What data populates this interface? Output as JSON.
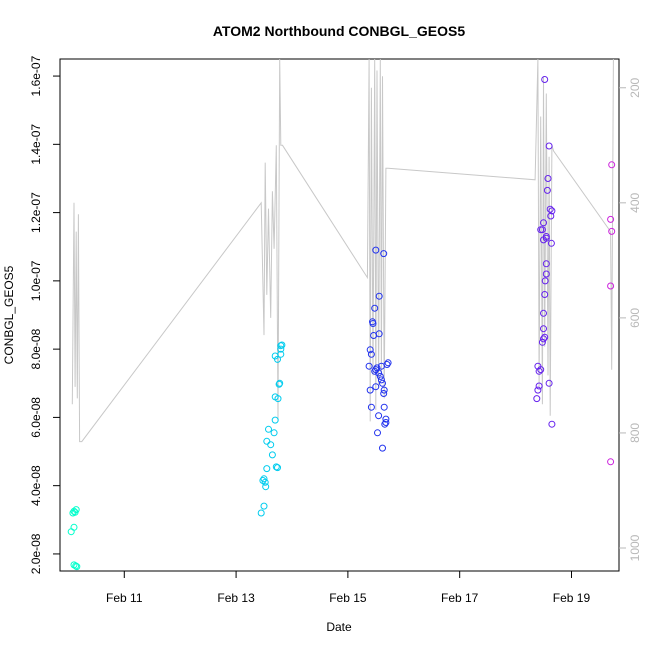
{
  "chart_data": {
    "type": "scatter",
    "title": "ATOM2 Northbound CONBGL_GEOS5",
    "xlabel": "Date",
    "ylabel": "CONBGL_GEOS5",
    "xlim": [
      9.85,
      19.85
    ],
    "ylim": [
      1.5e-08,
      1.65e-07
    ],
    "x_ticks": [
      {
        "value": 11,
        "label": "Feb 11"
      },
      {
        "value": 13,
        "label": "Feb 13"
      },
      {
        "value": 15,
        "label": "Feb 15"
      },
      {
        "value": 17,
        "label": "Feb 17"
      },
      {
        "value": 19,
        "label": "Feb 19"
      }
    ],
    "y_ticks": [
      {
        "value": 2e-08,
        "label": "2.0e-08"
      },
      {
        "value": 4e-08,
        "label": "4.0e-08"
      },
      {
        "value": 6e-08,
        "label": "6.0e-08"
      },
      {
        "value": 8e-08,
        "label": "8.0e-08"
      },
      {
        "value": 1e-07,
        "label": "1.0e-07"
      },
      {
        "value": 1.2e-07,
        "label": "1.2e-07"
      },
      {
        "value": 1.4e-07,
        "label": "1.4e-07"
      },
      {
        "value": 1.6e-07,
        "label": "1.6e-07"
      }
    ],
    "right_axis": {
      "ylim": [
        1040,
        150
      ],
      "ticks": [
        {
          "value": 200,
          "label": "200"
        },
        {
          "value": 400,
          "label": "400"
        },
        {
          "value": 600,
          "label": "600"
        },
        {
          "value": 800,
          "label": "800"
        },
        {
          "value": 1000,
          "label": "1000"
        }
      ],
      "color": "#b8b8b8"
    },
    "pressure_line": {
      "color": "#c8c8c8",
      "x": [
        10.07,
        10.1,
        10.12,
        10.14,
        10.16,
        10.18,
        10.2,
        10.24,
        13.45,
        13.5,
        13.52,
        13.55,
        13.58,
        13.62,
        13.65,
        13.68,
        13.72,
        13.75,
        13.78,
        13.8,
        13.83,
        15.35,
        15.38,
        15.4,
        15.42,
        15.45,
        15.48,
        15.5,
        15.52,
        15.55,
        15.58,
        15.6,
        15.62,
        15.65,
        15.68,
        15.72,
        18.35,
        18.4,
        18.42,
        18.45,
        18.48,
        18.5,
        18.52,
        18.55,
        18.58,
        18.6,
        18.62,
        18.65,
        18.68,
        19.7,
        19.72,
        19.75
      ],
      "y": [
        750,
        400,
        720,
        450,
        740,
        420,
        815,
        815,
        400,
        630,
        330,
        560,
        410,
        600,
        380,
        480,
        300,
        780,
        150,
        300,
        300,
        530,
        150,
        780,
        200,
        700,
        150,
        760,
        170,
        720,
        150,
        700,
        180,
        740,
        340,
        340,
        360,
        150,
        720,
        250,
        750,
        180,
        650,
        210,
        700,
        320,
        770,
        300,
        310,
        450,
        690,
        150
      ]
    },
    "series": [
      {
        "color": "#00ffcc",
        "points": [
          [
            10.05,
            2.65e-08
          ],
          [
            10.08,
            3.2e-08
          ],
          [
            10.1,
            3.25e-08
          ],
          [
            10.12,
            3.22e-08
          ],
          [
            10.14,
            3.3e-08
          ],
          [
            10.1,
            2.78e-08
          ],
          [
            10.1,
            1.68e-08
          ],
          [
            10.13,
            1.65e-08
          ],
          [
            10.15,
            1.63e-08
          ]
        ]
      },
      {
        "color": "#00ccee",
        "points": [
          [
            13.45,
            3.2e-08
          ],
          [
            13.5,
            3.4e-08
          ],
          [
            13.48,
            4.15e-08
          ],
          [
            13.5,
            4.2e-08
          ],
          [
            13.52,
            4.1e-08
          ],
          [
            13.53,
            3.97e-08
          ],
          [
            13.55,
            4.5e-08
          ],
          [
            13.55,
            5.3e-08
          ],
          [
            13.58,
            5.65e-08
          ],
          [
            13.62,
            5.2e-08
          ],
          [
            13.65,
            4.9e-08
          ],
          [
            13.68,
            5.55e-08
          ],
          [
            13.7,
            6.6e-08
          ],
          [
            13.72,
            4.55e-08
          ],
          [
            13.74,
            4.53e-08
          ],
          [
            13.7,
            7.8e-08
          ],
          [
            13.74,
            7.7e-08
          ],
          [
            13.75,
            6.55e-08
          ],
          [
            13.77,
            6.97e-08
          ],
          [
            13.78,
            7e-08
          ],
          [
            13.8,
            8e-08
          ],
          [
            13.8,
            8.1e-08
          ],
          [
            13.82,
            8.12e-08
          ],
          [
            13.8,
            7.85e-08
          ],
          [
            13.7,
            5.92e-08
          ]
        ]
      },
      {
        "color": "#2233ee",
        "points": [
          [
            15.38,
            7.5e-08
          ],
          [
            15.4,
            6.8e-08
          ],
          [
            15.42,
            6.3e-08
          ],
          [
            15.4,
            7.98e-08
          ],
          [
            15.42,
            7.85e-08
          ],
          [
            15.44,
            8.8e-08
          ],
          [
            15.45,
            8.75e-08
          ],
          [
            15.46,
            8.4e-08
          ],
          [
            15.48,
            9.2e-08
          ],
          [
            15.5,
            1.09e-07
          ],
          [
            15.48,
            7.35e-08
          ],
          [
            15.5,
            7.4e-08
          ],
          [
            15.5,
            6.9e-08
          ],
          [
            15.52,
            7.45e-08
          ],
          [
            15.53,
            5.55e-08
          ],
          [
            15.55,
            6.05e-08
          ],
          [
            15.56,
            9.55e-08
          ],
          [
            15.56,
            8.45e-08
          ],
          [
            15.58,
            7.2e-08
          ],
          [
            15.6,
            7.1e-08
          ],
          [
            15.62,
            7e-08
          ],
          [
            15.62,
            5.1e-08
          ],
          [
            15.64,
            1.08e-07
          ],
          [
            15.65,
            6.8e-08
          ],
          [
            15.65,
            6.3e-08
          ],
          [
            15.66,
            5.8e-08
          ],
          [
            15.68,
            5.85e-08
          ],
          [
            15.68,
            5.95e-08
          ],
          [
            15.7,
            7.55e-08
          ],
          [
            15.72,
            7.6e-08
          ],
          [
            15.55,
            7.3e-08
          ],
          [
            15.6,
            7.5e-08
          ],
          [
            15.64,
            6.7e-08
          ]
        ]
      },
      {
        "color": "#6622ee",
        "points": [
          [
            18.38,
            6.55e-08
          ],
          [
            18.4,
            6.8e-08
          ],
          [
            18.42,
            6.92e-08
          ],
          [
            18.4,
            7.5e-08
          ],
          [
            18.42,
            7.35e-08
          ],
          [
            18.45,
            7.4e-08
          ],
          [
            18.45,
            1.15e-07
          ],
          [
            18.48,
            1.15e-07
          ],
          [
            18.5,
            1.17e-07
          ],
          [
            18.5,
            1.12e-07
          ],
          [
            18.5,
            8.3e-08
          ],
          [
            18.52,
            8.35e-08
          ],
          [
            18.5,
            8.6e-08
          ],
          [
            18.48,
            8.2e-08
          ],
          [
            18.52,
            1.59e-07
          ],
          [
            18.5,
            9.05e-08
          ],
          [
            18.52,
            9.6e-08
          ],
          [
            18.53,
            1e-07
          ],
          [
            18.55,
            1.02e-07
          ],
          [
            18.55,
            1.05e-07
          ],
          [
            18.55,
            1.13e-07
          ],
          [
            18.57,
            1.265e-07
          ],
          [
            18.58,
            1.3e-07
          ],
          [
            18.6,
            1.395e-07
          ],
          [
            18.62,
            1.21e-07
          ],
          [
            18.63,
            1.19e-07
          ],
          [
            18.64,
            1.11e-07
          ],
          [
            18.65,
            1.205e-07
          ],
          [
            18.6,
            7e-08
          ],
          [
            18.65,
            5.8e-08
          ],
          [
            18.55,
            1.125e-07
          ]
        ]
      },
      {
        "color": "#cc22dd",
        "points": [
          [
            19.7,
            1.18e-07
          ],
          [
            19.72,
            1.145e-07
          ],
          [
            19.7,
            9.85e-08
          ],
          [
            19.72,
            1.34e-07
          ],
          [
            19.7,
            4.7e-08
          ]
        ]
      }
    ]
  }
}
